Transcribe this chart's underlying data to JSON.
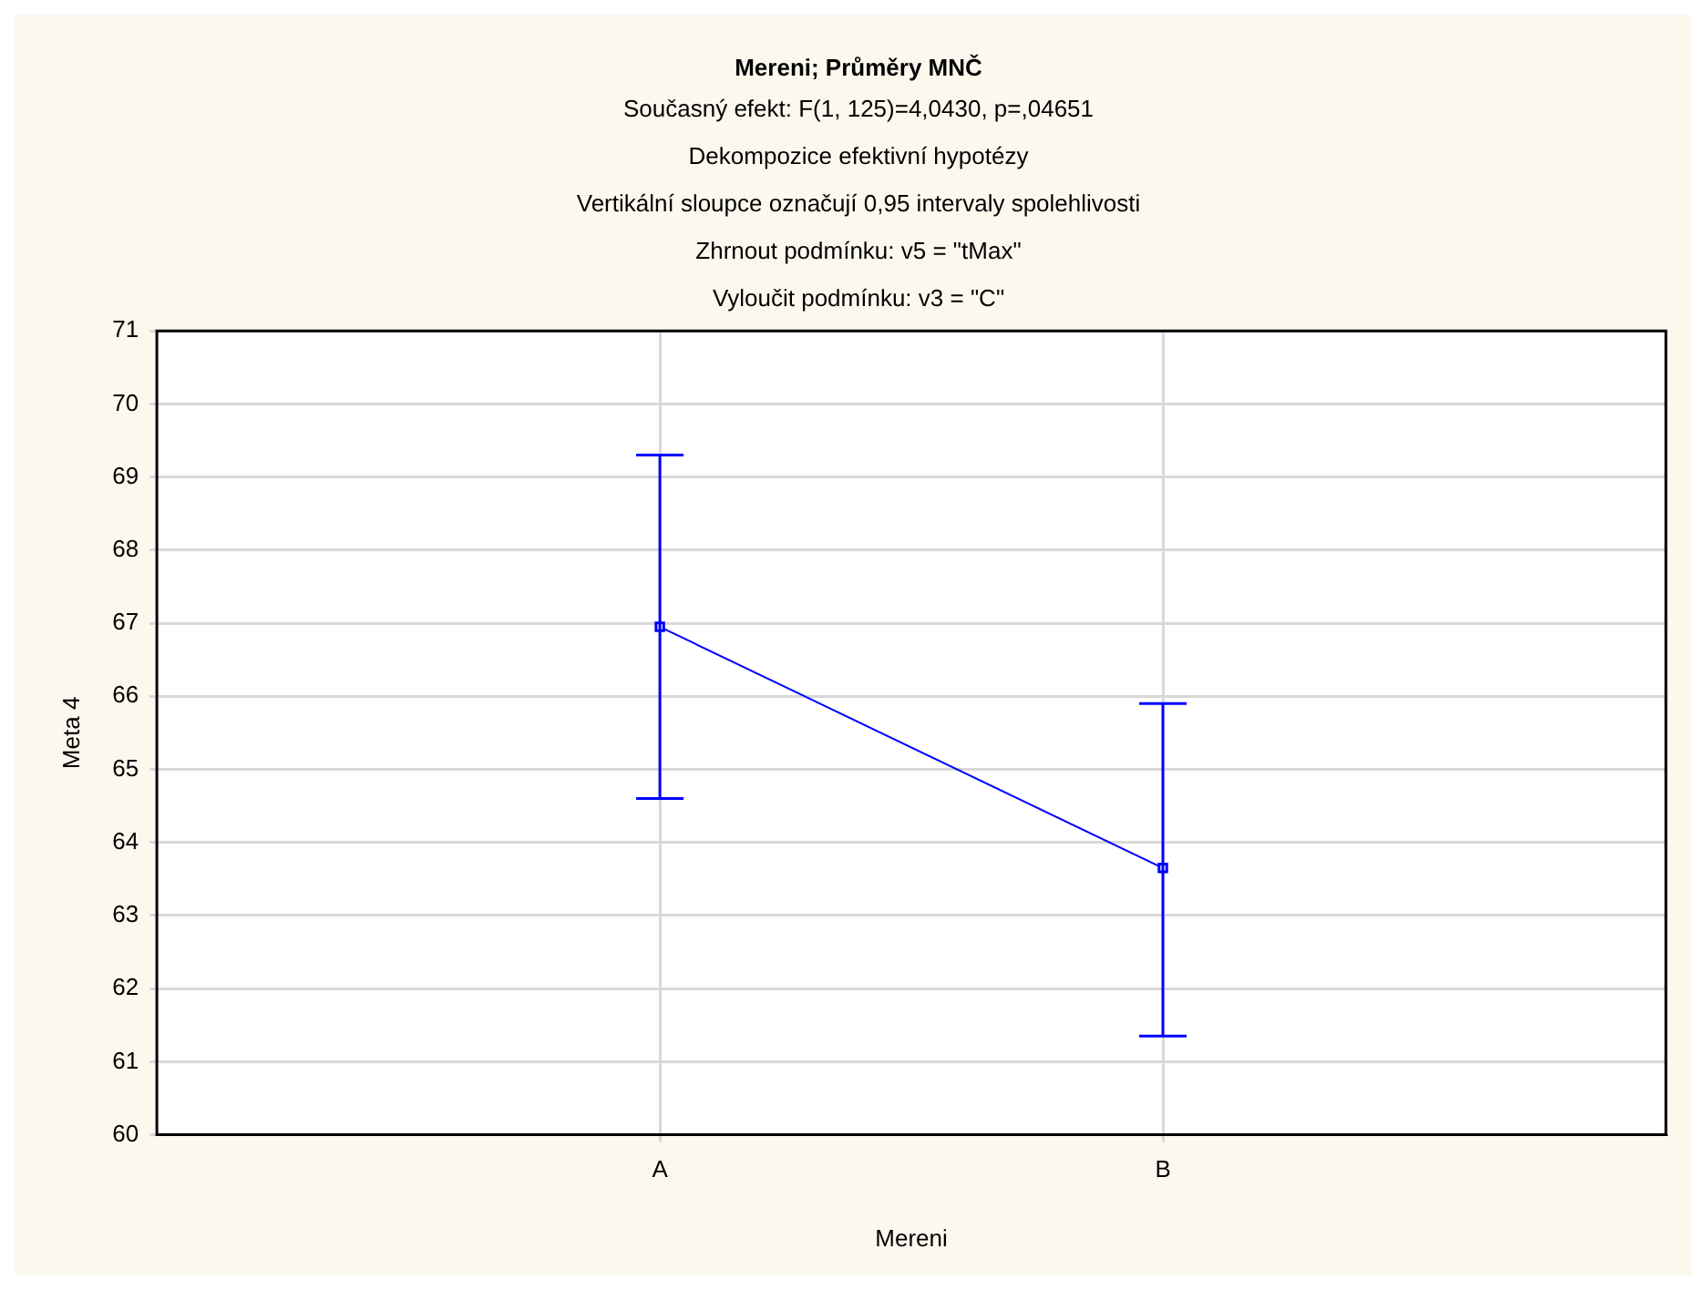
{
  "chart_data": {
    "type": "line",
    "title": "Mereni; Průměry MNČ",
    "subtitle": "Současný efekt: F(1, 125)=4,0430, p=,04651",
    "annotations": [
      "Dekompozice efektivní hypotézy",
      "Vertikální sloupce označují 0,95 intervaly spolehlivosti",
      "Zhrnout podmínku: v5 = \"tMax\"",
      "Vyloučit podmínku: v3 = \"C\""
    ],
    "xlabel": "Mereni",
    "ylabel": "Meta 4",
    "categories": [
      "A",
      "B"
    ],
    "series": [
      {
        "color": "#0000ff",
        "values": [
          66.95,
          63.65
        ],
        "errors": [
          [
            64.6,
            69.3
          ],
          [
            61.35,
            65.9
          ]
        ]
      }
    ],
    "ylim": [
      60,
      71
    ],
    "yticks": [
      60,
      61,
      62,
      63,
      64,
      65,
      66,
      67,
      68,
      69,
      70,
      71
    ],
    "grid": true,
    "legend": false,
    "marker": "square",
    "line_style": "solid"
  }
}
